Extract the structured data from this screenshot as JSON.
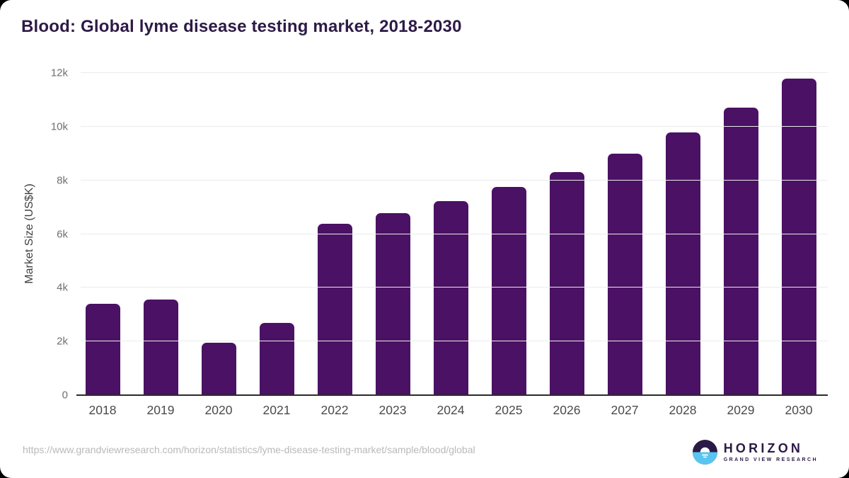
{
  "page": {
    "source_url": "https://www.grandviewresearch.com/horizon/statistics/lyme-disease-testing-market/sample/blood/global"
  },
  "logo": {
    "name": "HORIZON",
    "subtitle": "GRAND VIEW RESEARCH",
    "icon": "horizon-sunrise-icon",
    "colors": {
      "dark_purple": "#2b1a45",
      "light_blue": "#58c5f0"
    }
  },
  "chart_data": {
    "type": "bar",
    "title": "Blood: Global lyme disease testing market, 2018-2030",
    "xlabel": "",
    "ylabel": "Market Size (US$K)",
    "categories": [
      "2018",
      "2019",
      "2020",
      "2021",
      "2022",
      "2023",
      "2024",
      "2025",
      "2026",
      "2027",
      "2028",
      "2029",
      "2030"
    ],
    "values": [
      3400,
      3560,
      1950,
      2690,
      6380,
      6780,
      7220,
      7750,
      8300,
      9000,
      9790,
      10700,
      11780
    ],
    "ylim": [
      0,
      12000
    ],
    "yticks": [
      {
        "value": 0,
        "label": "0"
      },
      {
        "value": 2000,
        "label": "2k"
      },
      {
        "value": 4000,
        "label": "4k"
      },
      {
        "value": 6000,
        "label": "6k"
      },
      {
        "value": 8000,
        "label": "8k"
      },
      {
        "value": 10000,
        "label": "10k"
      },
      {
        "value": 12000,
        "label": "12k"
      }
    ],
    "grid": "horizontal",
    "legend": "none",
    "bar_color": "#4a1164"
  }
}
